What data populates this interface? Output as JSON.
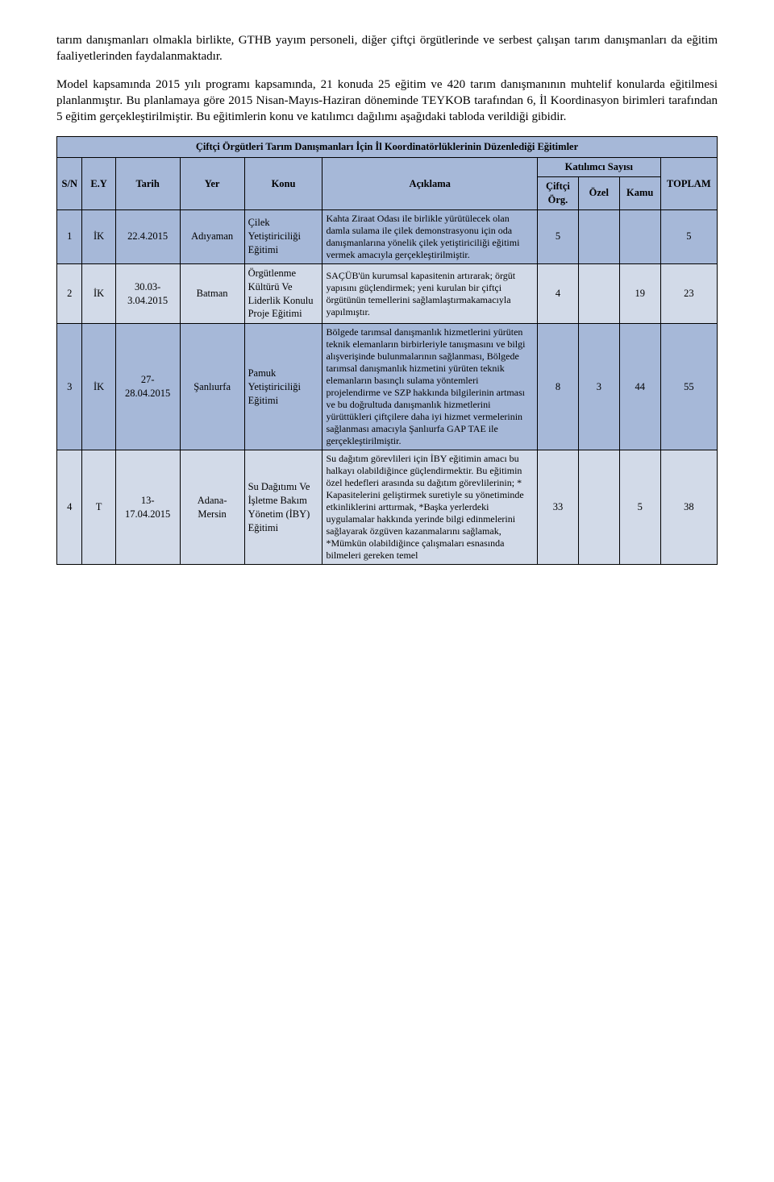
{
  "colors": {
    "header_bg": "#a6b8d8",
    "row_odd_bg": "#a6b8d8",
    "row_even_bg": "#d2dae8",
    "border": "#000000",
    "text": "#000000",
    "page_bg": "#ffffff"
  },
  "typography": {
    "body_family": "Times New Roman",
    "body_size_pt": 12,
    "table_size_pt": 10,
    "title_weight": "bold"
  },
  "paragraphs": {
    "p1": "tarım danışmanları olmakla birlikte, GTHB yayım personeli, diğer çiftçi örgütlerinde ve serbest çalışan tarım danışmanları da eğitim faaliyetlerinden faydalanmaktadır.",
    "p2": "Model kapsamında 2015 yılı programı kapsamında, 21 konuda 25 eğitim ve 420 tarım danışmanının muhtelif konularda eğitilmesi planlanmıştır. Bu planlamaya göre 2015 Nisan-Mayıs-Haziran döneminde TEYKOB tarafından 6, İl Koordinasyon birimleri tarafından 5 eğitim gerçekleştirilmiştir. Bu eğitimlerin konu ve katılımcı dağılımı aşağıdaki tabloda verildiği gibidir."
  },
  "table": {
    "title": "Çiftçi Örgütleri Tarım Danışmanları İçin İl Koordinatörlüklerinin Düzenlediği Eğitimler",
    "headers": {
      "sn": "S/N",
      "ey": "E.Y",
      "tarih": "Tarih",
      "yer": "Yer",
      "konu": "Konu",
      "aciklama": "Açıklama",
      "katilimci": "Katılımcı Sayısı",
      "ciftci": "Çiftçi Örg.",
      "ozel": "Özel",
      "kamu": "Kamu",
      "toplam": "TOPLAM"
    },
    "rows": [
      {
        "sn": "1",
        "ey": "İK",
        "tarih": "22.4.2015",
        "yer": "Adıyaman",
        "konu": "Çilek Yetiştiriciliği Eğitimi",
        "aciklama": "Kahta Ziraat Odası ile birlikle yürütülecek olan damla sulama ile çilek demonstrasyonu için oda danışmanlarına yönelik çilek yetiştiriciliği eğitimi vermek amacıyla gerçekleştirilmiştir.",
        "ciftci": "5",
        "ozel": "",
        "kamu": "",
        "toplam": "5"
      },
      {
        "sn": "2",
        "ey": "İK",
        "tarih": "30.03-3.04.2015",
        "yer": "Batman",
        "konu": "Örgütlenme Kültürü Ve Liderlik Konulu Proje Eğitimi",
        "aciklama": "SAÇÜB'ün kurumsal kapasitenin artırarak; örgüt yapısını güçlendirmek; yeni kurulan bir çiftçi örgütünün temellerini sağlamlaştırmakamacıyla yapılmıştır.",
        "ciftci": "4",
        "ozel": "",
        "kamu": "19",
        "toplam": "23"
      },
      {
        "sn": "3",
        "ey": "İK",
        "tarih": "27-28.04.2015",
        "yer": "Şanlıurfa",
        "konu": "Pamuk Yetiştiriciliği Eğitimi",
        "aciklama": "Bölgede tarımsal danışmanlık hizmetlerini yürüten teknik elemanların birbirleriyle tanışmasını ve bilgi alışverişinde bulunmalarının sağlanması, Bölgede tarımsal danışmanlık hizmetini yürüten teknik elemanların basınçlı sulama yöntemleri projelendirme ve SZP hakkında bilgilerinin artması ve bu doğrultuda danışmanlık hizmetlerini yürüttükleri çiftçilere daha iyi hizmet vermelerinin sağlanması amacıyla Şanlıurfa GAP TAE ile gerçekleştirilmiştir.",
        "ciftci": "8",
        "ozel": "3",
        "kamu": "44",
        "toplam": "55"
      },
      {
        "sn": "4",
        "ey": "T",
        "tarih": "13-17.04.2015",
        "yer": "Adana-Mersin",
        "konu": "Su Dağıtımı Ve İşletme Bakım Yönetim (İBY) Eğitimi",
        "aciklama": "Su dağıtım görevlileri için İBY eğitimin amacı bu halkayı olabildiğince güçlendirmektir. Bu eğitimin özel hedefleri arasında su dağıtım görevlilerinin; * Kapasitelerini geliştirmek suretiyle su yönetiminde etkinliklerini arttırmak, *Başka yerlerdeki uygulamalar hakkında yerinde bilgi edinmelerini sağlayarak özgüven kazanmalarını sağlamak, *Mümkün olabildiğince çalışmaları esnasında bilmeleri gereken temel",
        "ciftci": "33",
        "ozel": "",
        "kamu": "5",
        "toplam": "38"
      }
    ]
  }
}
